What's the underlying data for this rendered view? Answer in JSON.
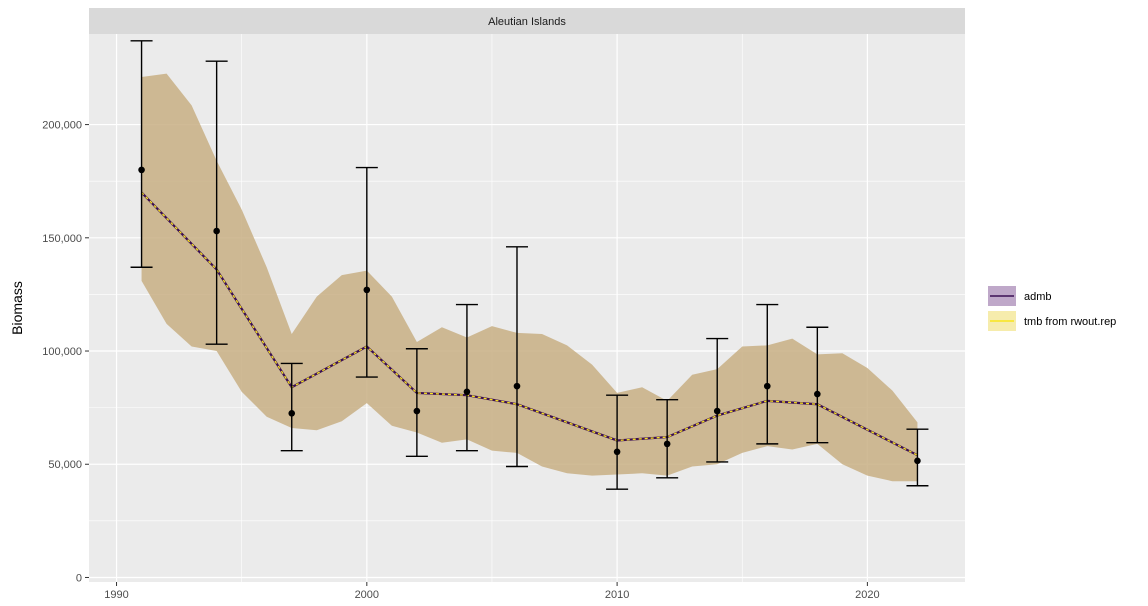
{
  "chart_data": {
    "type": "line",
    "facet_title": "Aleutian Islands",
    "xlabel": "",
    "ylabel": "Biomass",
    "xlim": [
      1988.9,
      2023.9
    ],
    "ylim": [
      -2000,
      240000
    ],
    "x_ticks": [
      1990,
      2000,
      2010,
      2020
    ],
    "y_ticks": [
      0,
      50000,
      100000,
      150000,
      200000
    ],
    "y_tick_labels": [
      "0",
      "50,000",
      "100,000",
      "150,000",
      "200,000"
    ],
    "grid": true,
    "legend_position": "right",
    "colors": {
      "panel_bg": "#ebebeb",
      "strip_bg": "#d9d9d9",
      "grid": "#ffffff",
      "ribbon": "#c8af84",
      "admb": "#3b0f54",
      "tmb": "#f9e51c",
      "points": "#000000"
    },
    "ribbon": {
      "x": [
        1991,
        1992,
        1993,
        1994,
        1995,
        1996,
        1997,
        1998,
        1999,
        2000,
        2001,
        2002,
        2003,
        2004,
        2005,
        2006,
        2007,
        2008,
        2009,
        2010,
        2011,
        2012,
        2013,
        2014,
        2015,
        2016,
        2017,
        2018,
        2019,
        2020,
        2021,
        2022
      ],
      "lower": [
        131000,
        112000,
        102000,
        100000,
        82000,
        71000,
        66000,
        65000,
        69000,
        77000,
        67000,
        64000,
        59500,
        61000,
        56000,
        55000,
        49000,
        46000,
        45000,
        45500,
        46000,
        45000,
        49000,
        50000,
        55000,
        58000,
        56500,
        59000,
        50000,
        45000,
        42500,
        42500
      ],
      "upper": [
        221000,
        222500,
        208500,
        184000,
        162500,
        137000,
        107500,
        124000,
        133500,
        135500,
        124000,
        104000,
        110500,
        106000,
        111000,
        108000,
        107500,
        102500,
        94000,
        81500,
        84000,
        78000,
        89500,
        92000,
        102000,
        102500,
        105500,
        98500,
        99000,
        92500,
        82500,
        68500
      ]
    },
    "series": [
      {
        "name": "admb",
        "x": [
          1991,
          1994,
          1997,
          2000,
          2002,
          2004,
          2006,
          2010,
          2012,
          2014,
          2016,
          2018,
          2022
        ],
        "values": [
          170000,
          136000,
          84000,
          102000,
          81500,
          80500,
          76500,
          60500,
          62000,
          71500,
          78000,
          76500,
          54000
        ]
      },
      {
        "name": "tmb from rwout.rep",
        "x": [
          1991,
          1994,
          1997,
          2000,
          2002,
          2004,
          2006,
          2010,
          2012,
          2014,
          2016,
          2018,
          2022
        ],
        "values": [
          170000,
          136000,
          84000,
          102000,
          81500,
          80500,
          76500,
          60500,
          62000,
          71500,
          78000,
          76500,
          54000
        ]
      }
    ],
    "observations": {
      "x": [
        1991,
        1994,
        1997,
        2000,
        2002,
        2004,
        2006,
        2010,
        2012,
        2014,
        2016,
        2018,
        2022
      ],
      "values": [
        180000,
        153000,
        72500,
        127000,
        73500,
        82000,
        84500,
        55500,
        59000,
        73500,
        84500,
        81000,
        51500
      ],
      "lower": [
        137000,
        103000,
        56000,
        88500,
        53500,
        56000,
        49000,
        39000,
        44000,
        51000,
        59000,
        59500,
        40500
      ],
      "upper": [
        237000,
        228000,
        94500,
        181000,
        101000,
        120500,
        146000,
        80500,
        78500,
        105500,
        120500,
        110500,
        65500
      ]
    }
  }
}
